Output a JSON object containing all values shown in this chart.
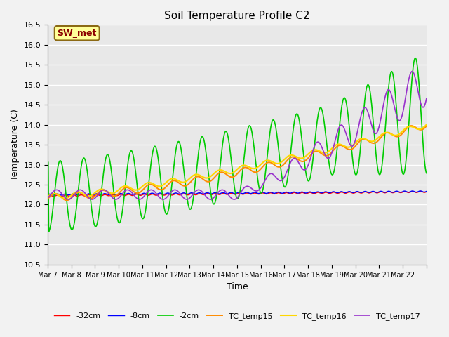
{
  "title": "Soil Temperature Profile C2",
  "xlabel": "Time",
  "ylabel": "Temperature (C)",
  "ylim": [
    10.5,
    16.5
  ],
  "annotation": "SW_met",
  "annotation_color": "#8B0000",
  "annotation_bg": "#FFFF99",
  "annotation_border": "#8B6914",
  "x_tick_labels": [
    "Mar 7",
    "Mar 8",
    "Mar 9",
    "Mar 10",
    "Mar 11",
    "Mar 12",
    "Mar 13",
    "Mar 14",
    "Mar 15",
    "Mar 16",
    "Mar 17",
    "Mar 18",
    "Mar 19",
    "Mar 20",
    "Mar 21",
    "Mar 22"
  ],
  "colors": {
    "minus32cm": "#FF0000",
    "minus8cm": "#0000FF",
    "minus2cm": "#00CC00",
    "TC_temp15": "#FF8C00",
    "TC_temp16": "#FFD700",
    "TC_temp17": "#9932CC"
  },
  "background_color": "#E8E8E8",
  "grid_color": "#FFFFFF"
}
